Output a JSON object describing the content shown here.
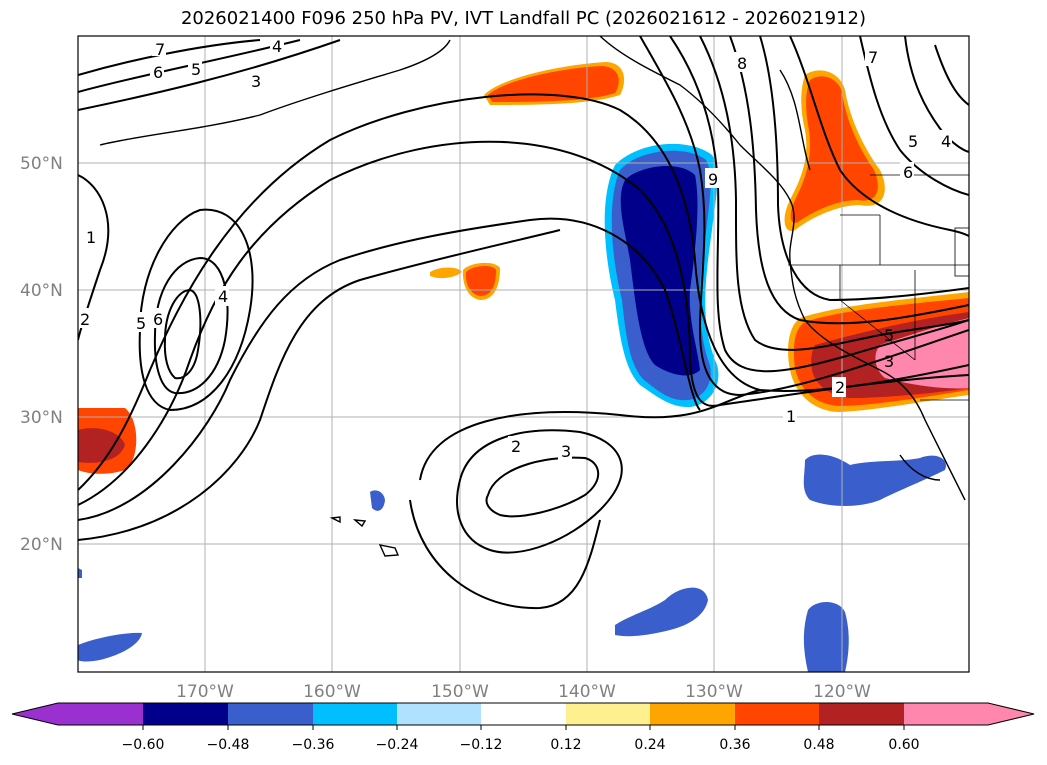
{
  "title": "2026021400 F096 250 hPa PV, IVT Landfall PC (2026021612 - 2026021912)",
  "map": {
    "lat_labels": [
      "50°N",
      "40°N",
      "30°N",
      "20°N"
    ],
    "lon_labels": [
      "170°W",
      "160°W",
      "150°W",
      "140°W",
      "130°W",
      "120°W"
    ]
  },
  "colorbar": {
    "ticks": [
      "−0.60",
      "−0.48",
      "−0.36",
      "−0.24",
      "−0.12",
      "0.12",
      "0.24",
      "0.36",
      "0.48",
      "0.60"
    ],
    "colors": [
      "#9b30d0",
      "#00008b",
      "#3a5fcd",
      "#00bfff",
      "#b0e2ff",
      "#ffffff",
      "#fff08f",
      "#ffa500",
      "#ff4500",
      "#b22222",
      "#ff86ad",
      "#ff86ad"
    ]
  },
  "contour_labels": {
    "l7a": "7",
    "l6a": "6",
    "l5a": "5",
    "l4a": "4",
    "l3a": "3",
    "l1a": "1",
    "l2a": "2",
    "l5b": "5",
    "l6b": "6",
    "l4b": "4",
    "l9": "9",
    "l8": "8",
    "l7b": "7",
    "l5c": "5",
    "l4c": "4",
    "l6c": "6",
    "l2b": "2",
    "l3b": "3",
    "l1b": "1",
    "l2c": "2",
    "l3c": "3",
    "l5d": "5"
  },
  "shading_colors": {
    "neg_strong": "#00008b",
    "neg_mid": "#3a5fcd",
    "neg_light": "#00bfff",
    "pos_orange": "#ff4500",
    "pos_amber": "#ffa500",
    "pos_red": "#b22222",
    "pos_pink": "#ff86ad"
  }
}
